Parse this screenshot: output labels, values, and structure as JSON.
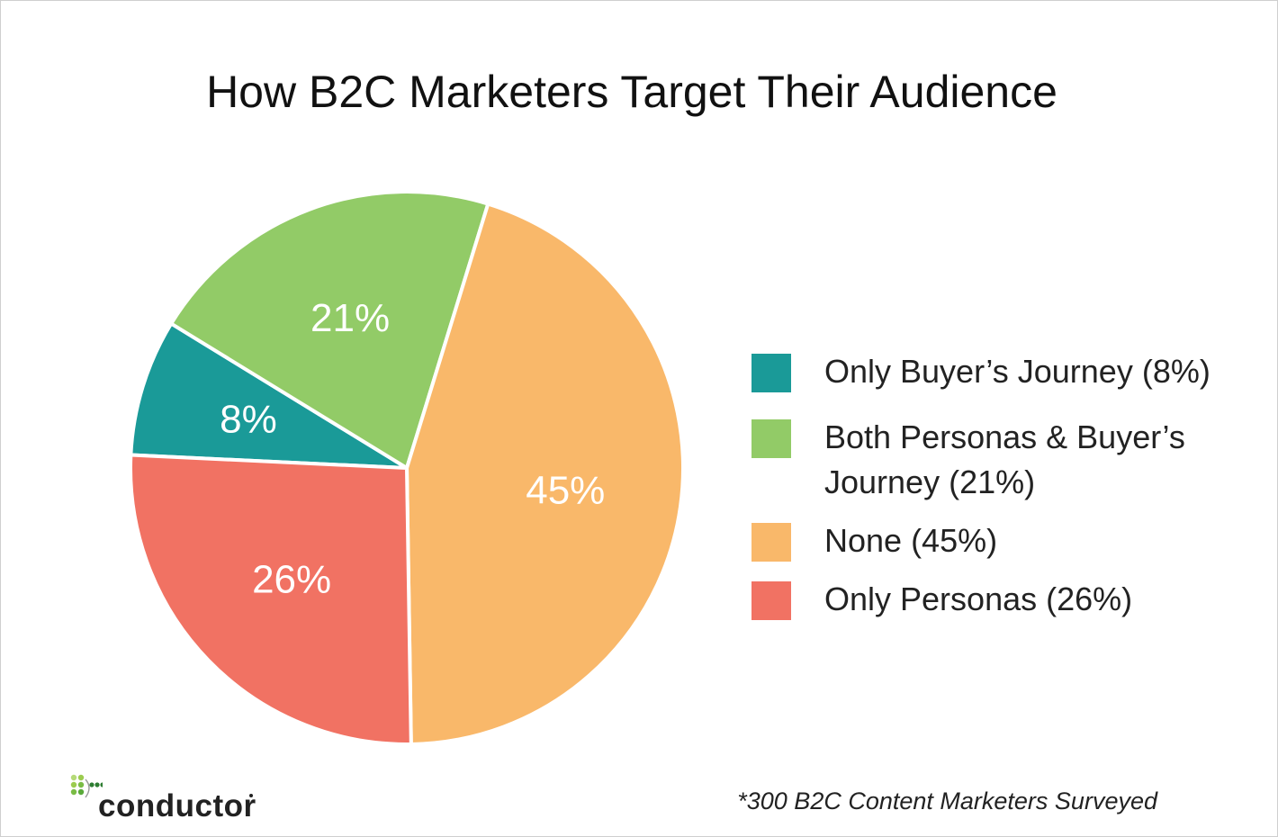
{
  "title": "How B2C Marketers Target Their Audience",
  "chart_data": {
    "type": "pie",
    "title": "How B2C Marketers Target Their Audience",
    "slices": [
      {
        "name": "Only Buyer’s Journey",
        "value": 8,
        "label": "8%",
        "legend": "Only Buyer’s Journey (8%)",
        "color": "#1a9a98"
      },
      {
        "name": "Both Personas & Buyer’s Journey",
        "value": 21,
        "label": "21%",
        "legend": "Both Personas & Buyer’s Journey (21%)",
        "color": "#92cb67"
      },
      {
        "name": "None",
        "value": 45,
        "label": "45%",
        "legend": "None (45%)",
        "color": "#f9b86a"
      },
      {
        "name": "Only Personas",
        "value": 26,
        "label": "26%",
        "legend": "Only Personas (26%)",
        "color": "#f17263"
      }
    ],
    "legend_position": "right"
  },
  "footnote": "*300 B2C Content Marketers Surveyed",
  "logo": {
    "text": "conductor",
    "icon": "conductor-dots-icon",
    "colors": [
      "#9ccc4f",
      "#5aaa3a",
      "#2e7d32"
    ]
  }
}
